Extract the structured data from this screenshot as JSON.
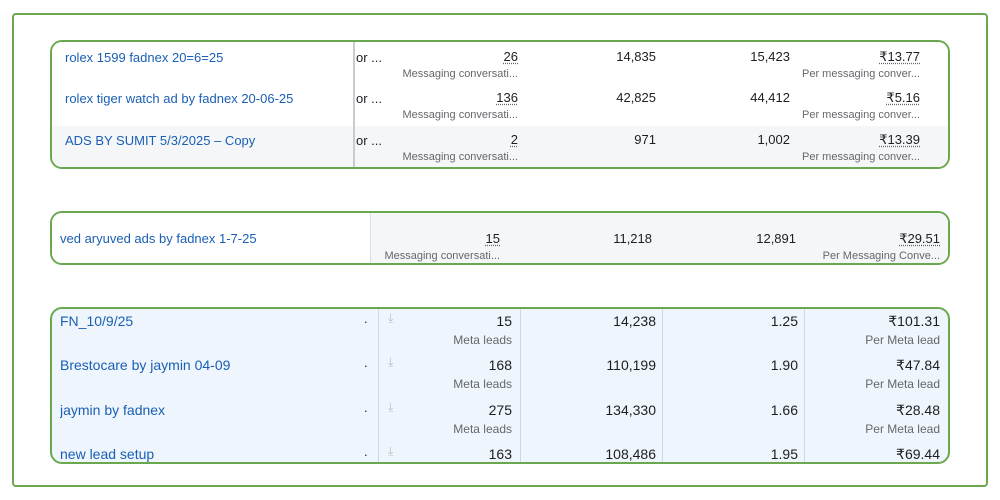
{
  "group1": {
    "rows": [
      {
        "name": "rolex 1599 fadnex 20=6=25",
        "status": "or ...",
        "results": "26",
        "results_sub": "Messaging conversati...",
        "reach": "14,835",
        "impressions": "15,423",
        "cost": "₹13.77",
        "cost_sub": "Per messaging conver..."
      },
      {
        "name": "rolex tiger watch ad by fadnex 20-06-25",
        "status": "or ...",
        "results": "136",
        "results_sub": "Messaging conversati...",
        "reach": "42,825",
        "impressions": "44,412",
        "cost": "₹5.16",
        "cost_sub": "Per messaging conver..."
      },
      {
        "name": "ADS BY SUMIT 5/3/2025 – Copy",
        "status": "or ...",
        "results": "2",
        "results_sub": "Messaging conversati...",
        "reach": "971",
        "impressions": "1,002",
        "cost": "₹13.39",
        "cost_sub": "Per messaging conver..."
      }
    ]
  },
  "group2": {
    "rows": [
      {
        "name": "ved aryuved ads by fadnex 1-7-25",
        "results": "15",
        "results_sub": "Messaging conversati...",
        "reach": "11,218",
        "impressions": "12,891",
        "cost": "₹29.51",
        "cost_sub": "Per Messaging Conve..."
      }
    ]
  },
  "group3": {
    "rows": [
      {
        "name": "FN_10/9/25",
        "status": ".",
        "results": "15",
        "results_sub": "Meta leads",
        "reach": "14,238",
        "frequency": "1.25",
        "cost": "₹101.31",
        "cost_sub": "Per Meta lead"
      },
      {
        "name": "Brestocare by jaymin 04-09",
        "status": ".",
        "results": "168",
        "results_sub": "Meta leads",
        "reach": "110,199",
        "frequency": "1.90",
        "cost": "₹47.84",
        "cost_sub": "Per Meta lead"
      },
      {
        "name": "jaymin by fadnex",
        "status": ".",
        "results": "275",
        "results_sub": "Meta leads",
        "reach": "134,330",
        "frequency": "1.66",
        "cost": "₹28.48",
        "cost_sub": "Per Meta lead"
      },
      {
        "name": "new lead setup",
        "status": ".",
        "results": "163",
        "results_sub": "",
        "reach": "108,486",
        "frequency": "1.95",
        "cost": "₹69.44",
        "cost_sub": ""
      }
    ]
  },
  "icons": {
    "download": "download-icon"
  },
  "colors": {
    "frame_border": "#6aa84f",
    "link_blue": "#1a5fb4",
    "row_alt": "#f5f6f7",
    "selected_bg": "#eef5fd"
  }
}
